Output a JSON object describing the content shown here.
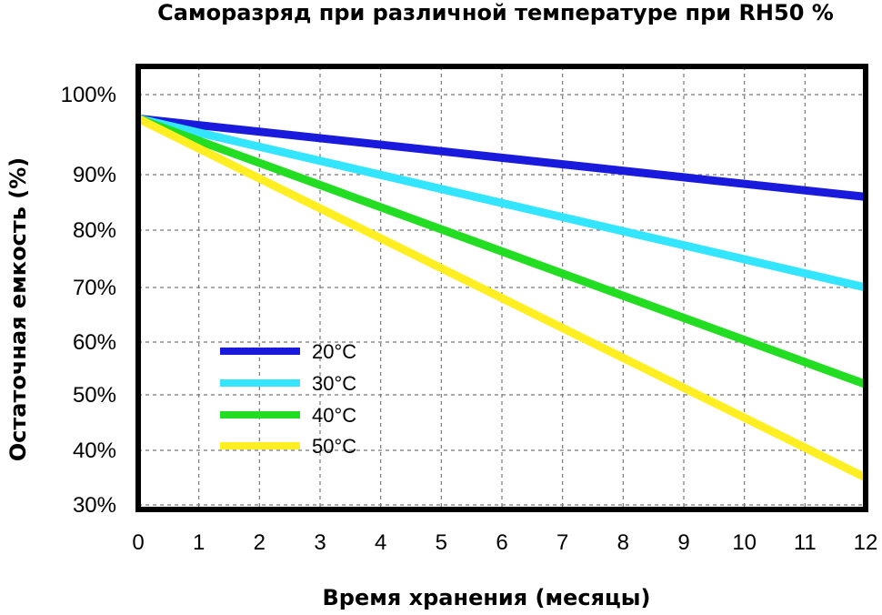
{
  "chart_data": {
    "type": "line",
    "title": "Саморазряд при различной температуре   при RH50 %",
    "xlabel": "Время хранения (месяцы)",
    "ylabel": "Остаточная емкость   (%)",
    "x": [
      0,
      12
    ],
    "xlim": [
      0,
      12
    ],
    "xticks": [
      "0",
      "1",
      "2",
      "3",
      "4",
      "5",
      "6",
      "7",
      "8",
      "9",
      "10",
      "11",
      "12"
    ],
    "yticks": [
      {
        "label": "100%",
        "value": 100
      },
      {
        "label": "90%",
        "value": 90
      },
      {
        "label": "80%",
        "value": 80
      },
      {
        "label": "70%",
        "value": 70
      },
      {
        "label": "60%",
        "value": 60
      },
      {
        "label": "50%",
        "value": 50
      },
      {
        "label": "40%",
        "value": 40
      },
      {
        "label": "30%",
        "value": 30
      }
    ],
    "grid": true,
    "legend_position": "bottom-left",
    "series": [
      {
        "name": "20°C",
        "color": "#1a1adc",
        "values": [
          97,
          86
        ]
      },
      {
        "name": "30°C",
        "color": "#33e5ff",
        "values": [
          97,
          70
        ]
      },
      {
        "name": "40°C",
        "color": "#22dd22",
        "values": [
          97,
          52
        ]
      },
      {
        "name": "50°C",
        "color": "#ffee22",
        "values": [
          97,
          35
        ]
      }
    ]
  }
}
